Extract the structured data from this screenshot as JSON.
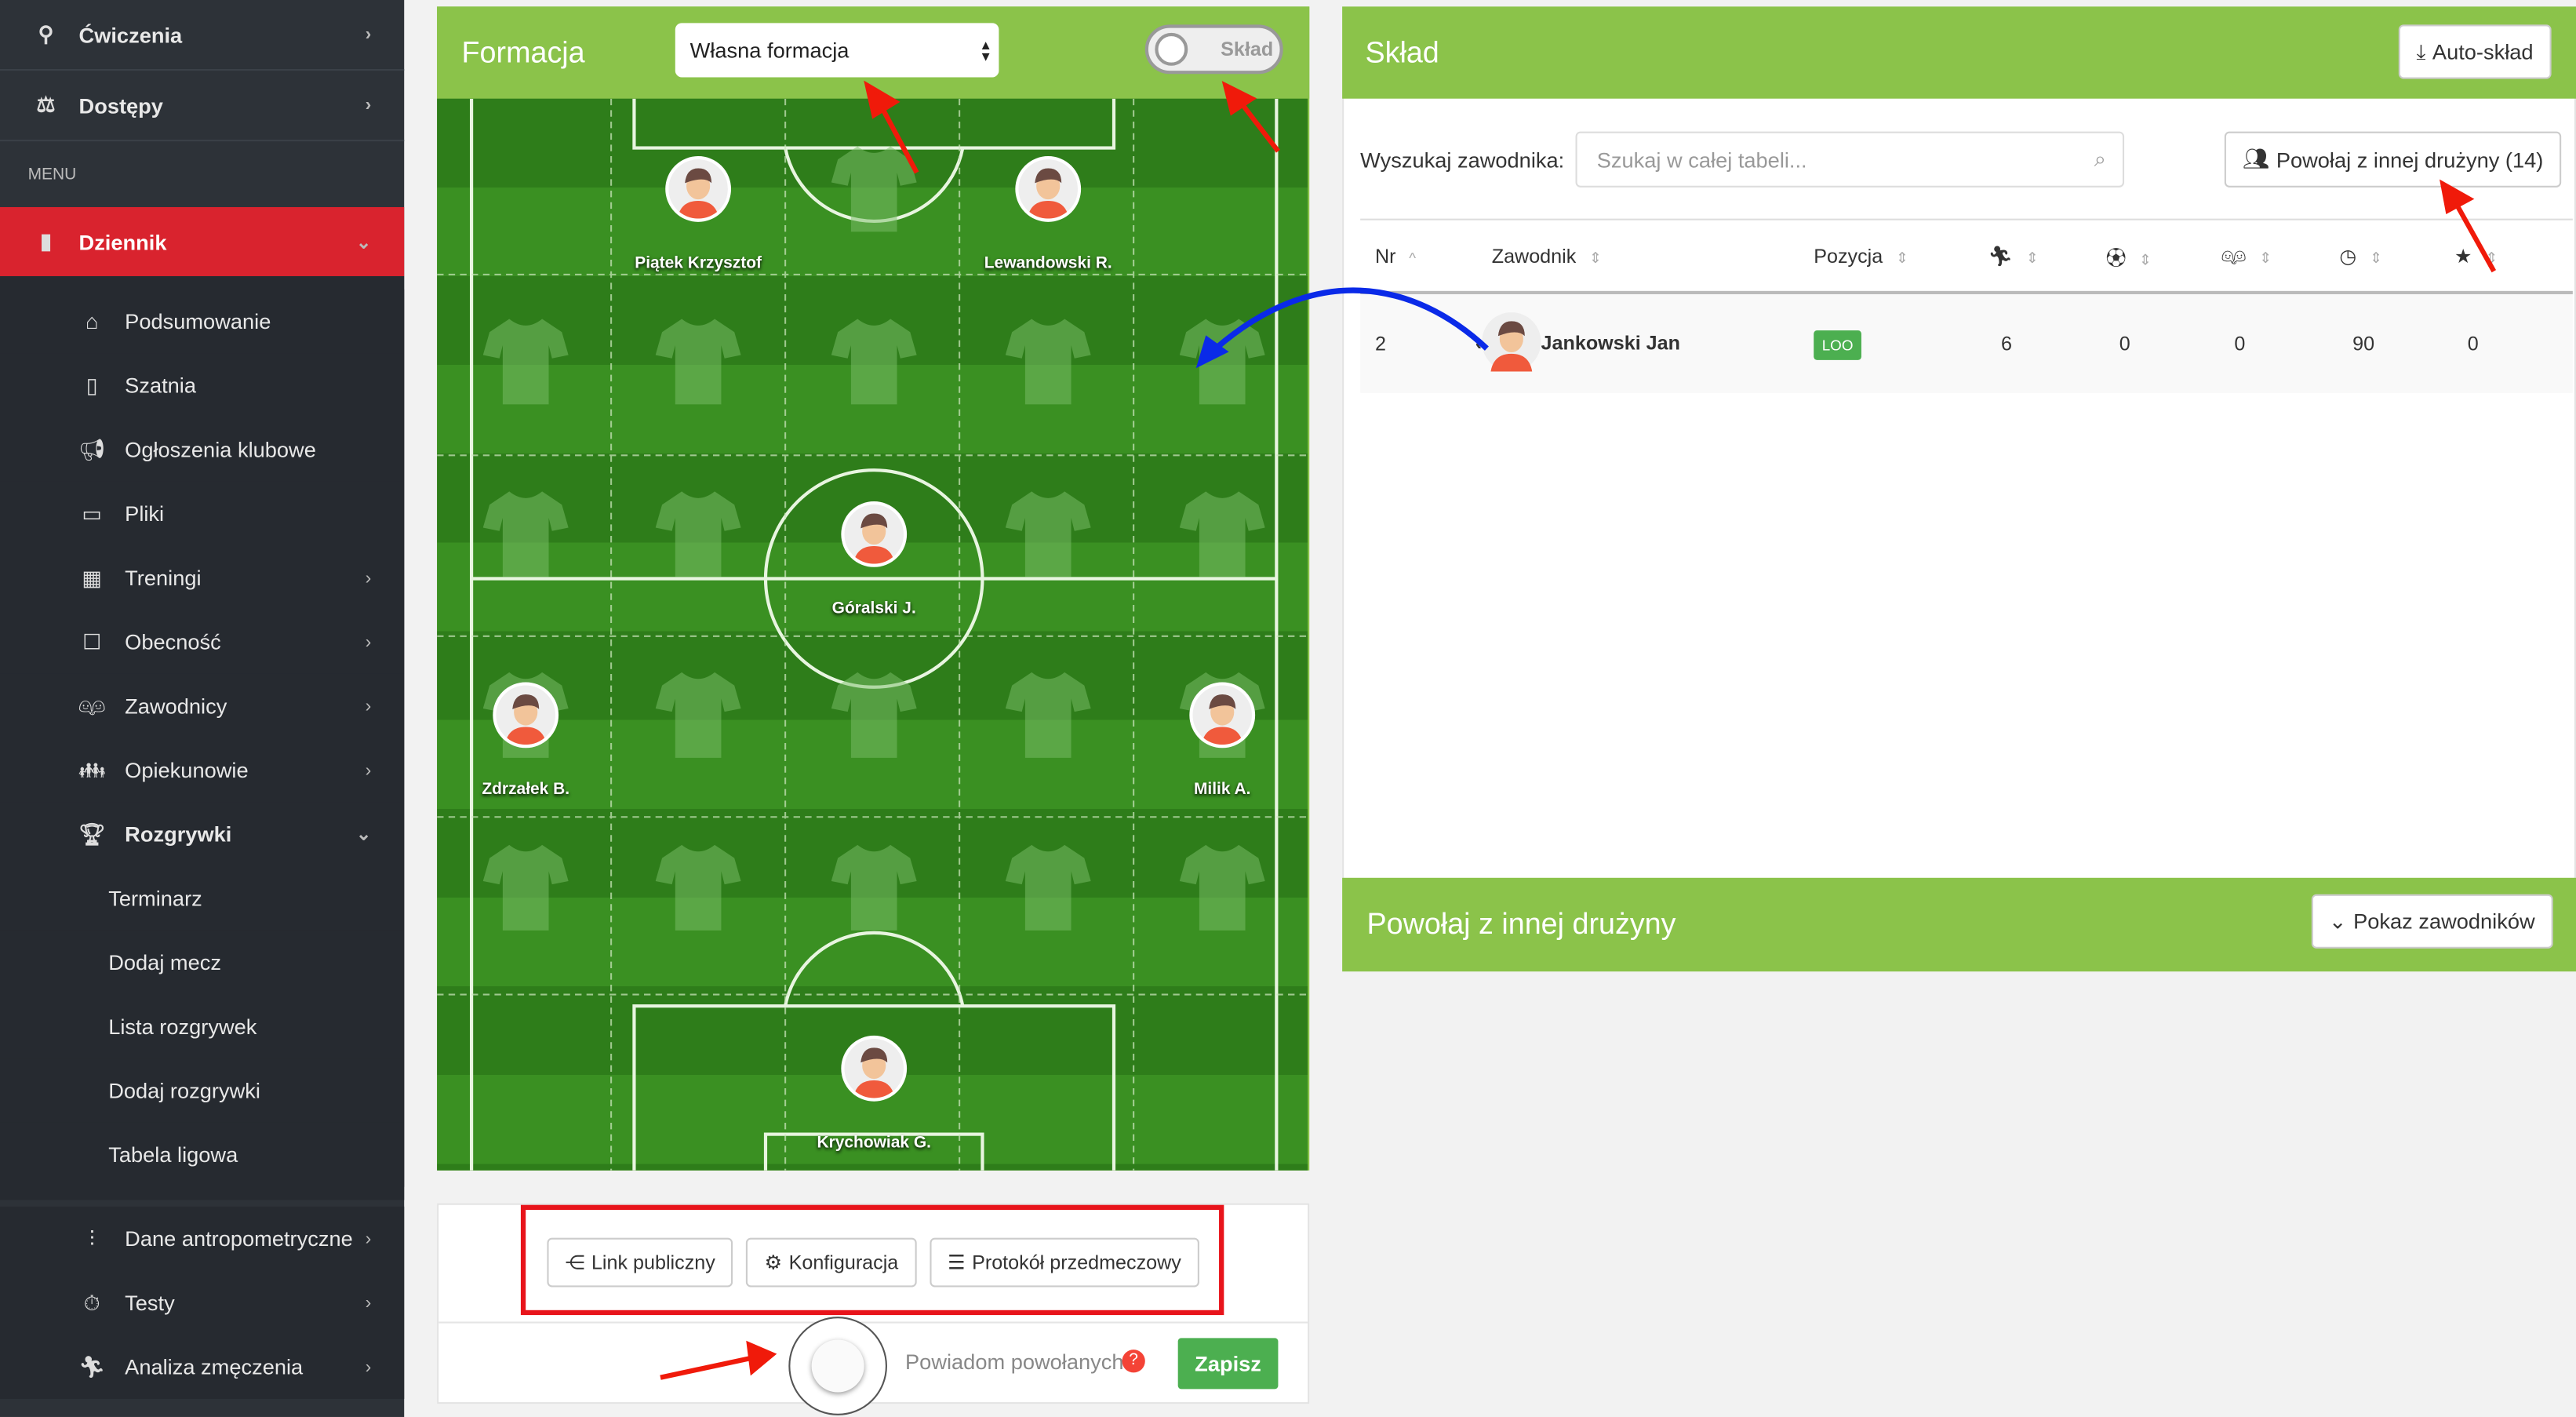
{
  "sidebar": {
    "top": [
      {
        "label": "Ćwiczenia",
        "icon": "exercise-icon"
      },
      {
        "label": "Dostępy",
        "icon": "access-icon"
      }
    ],
    "menu_label": "MENU",
    "active": {
      "label": "Dziennik",
      "icon": "book-icon"
    },
    "items": [
      {
        "label": "Podsumowanie",
        "icon": "home-icon",
        "chevron": false
      },
      {
        "label": "Szatnia",
        "icon": "door-icon",
        "chevron": false
      },
      {
        "label": "Ogłoszenia klubowe",
        "icon": "megaphone-icon",
        "chevron": false
      },
      {
        "label": "Pliki",
        "icon": "laptop-icon",
        "chevron": false
      },
      {
        "label": "Treningi",
        "icon": "calendar-icon",
        "chevron": true
      },
      {
        "label": "Obecność",
        "icon": "checklist-icon",
        "chevron": true
      },
      {
        "label": "Zawodnicy",
        "icon": "players-icon",
        "chevron": true
      },
      {
        "label": "Opiekunowie",
        "icon": "guardians-icon",
        "chevron": true
      }
    ],
    "games": {
      "label": "Rozgrywki",
      "icon": "trophy-icon"
    },
    "games_sub": [
      "Terminarz",
      "Dodaj mecz",
      "Lista rozgrywek",
      "Dodaj rozgrywki",
      "Tabela ligowa"
    ],
    "bottom": [
      {
        "label": "Dane antropometryczne",
        "icon": "ruler-icon"
      },
      {
        "label": "Testy",
        "icon": "stopwatch-icon"
      },
      {
        "label": "Analiza zmęczenia",
        "icon": "running-icon"
      }
    ]
  },
  "formation": {
    "title": "Formacja",
    "select_value": "Własna formacja",
    "toggle_label": "Skład",
    "players": [
      {
        "name": "Piątek Krzysztof",
        "col": 2,
        "row": 0
      },
      {
        "name": "Lewandowski R.",
        "col": 4,
        "row": 0
      },
      {
        "name": "Góralski J.",
        "col": 3,
        "row": 2
      },
      {
        "name": "Zdrzałek B.",
        "col": 1,
        "row": 3
      },
      {
        "name": "Milik A.",
        "col": 5,
        "row": 3
      },
      {
        "name": "Krychowiak G.",
        "col": 3,
        "row": 5
      }
    ],
    "buttons": {
      "public_link": "Link publiczny",
      "config": "Konfiguracja",
      "protocol": "Protokół przedmeczowy"
    },
    "notify_label": "Powiadom powołanych",
    "save": "Zapisz"
  },
  "squad": {
    "title": "Skład",
    "auto_button": "Auto-skład",
    "search_label": "Wyszukaj zawodnika:",
    "search_placeholder": "Szukaj w całej tabeli...",
    "call_button": "Powołaj z innej drużyny (14)",
    "columns": [
      "Nr",
      "Zawodnik",
      "Pozycja",
      "appearances-icon",
      "goals-icon",
      "substitutions-icon",
      "minutes-icon",
      "rating-icon"
    ],
    "rows": [
      {
        "nr": "2",
        "name": "Jankowski Jan",
        "position": "LOO",
        "apps": "6",
        "goals": "0",
        "subs": "0",
        "minutes": "90",
        "rating": "0"
      }
    ]
  },
  "other_team": {
    "title": "Powołaj z innej drużyny",
    "button": "Pokaz zawodników"
  },
  "colors": {
    "green": "#8bc34a",
    "red": "#d9232e",
    "sidebar": "#2d3238",
    "badge": "#4caf50"
  }
}
